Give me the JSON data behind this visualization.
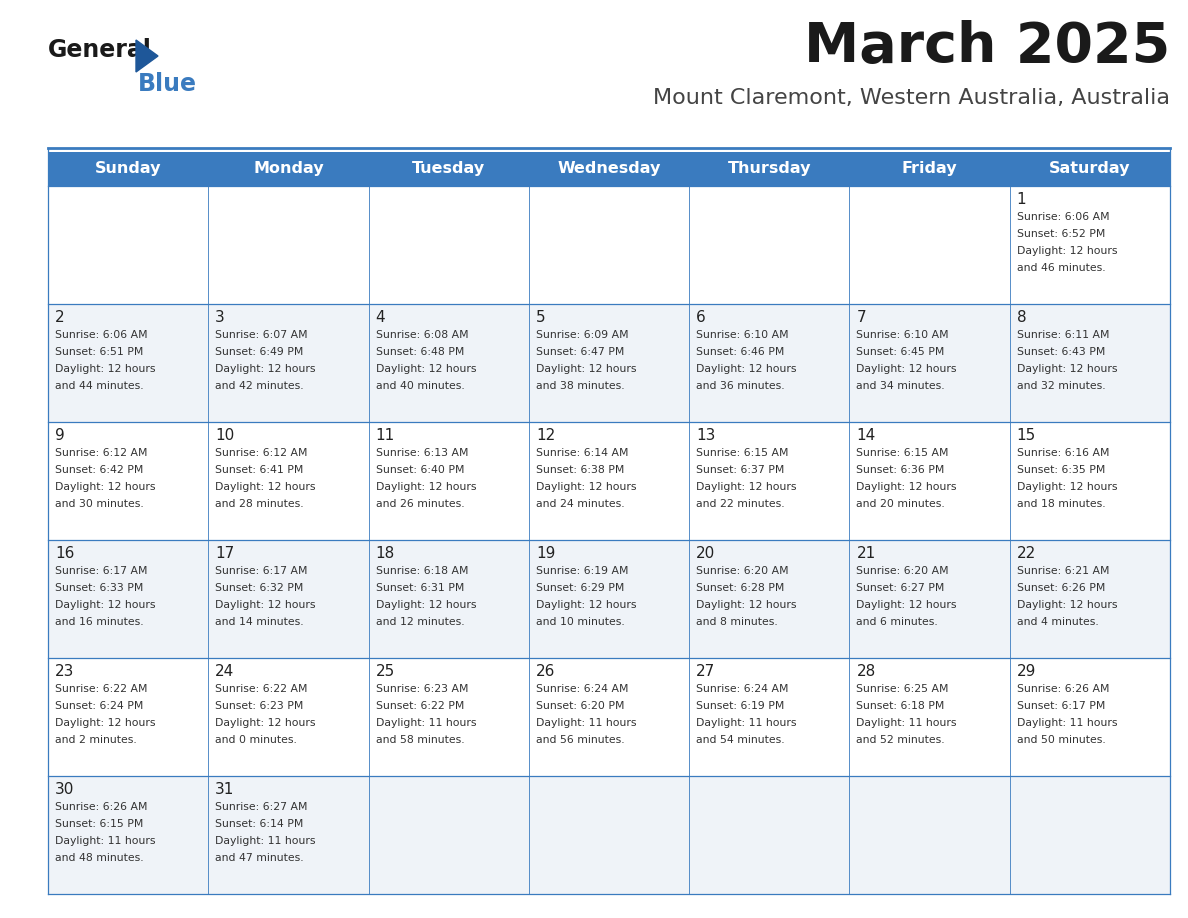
{
  "title": "March 2025",
  "subtitle": "Mount Claremont, Western Australia, Australia",
  "header_bg": "#3a7bbf",
  "header_text": "#ffffff",
  "weekdays": [
    "Sunday",
    "Monday",
    "Tuesday",
    "Wednesday",
    "Thursday",
    "Friday",
    "Saturday"
  ],
  "row_colors": [
    "#ffffff",
    "#eff3f8"
  ],
  "border_color": "#3a7bbf",
  "text_color": "#333333",
  "day_number_color": "#222222",
  "calendar_data": [
    [
      null,
      null,
      null,
      null,
      null,
      null,
      {
        "day": 1,
        "sunrise": "6:06 AM",
        "sunset": "6:52 PM",
        "daylight": "12 hours",
        "daylight2": "and 46 minutes."
      }
    ],
    [
      {
        "day": 2,
        "sunrise": "6:06 AM",
        "sunset": "6:51 PM",
        "daylight": "12 hours",
        "daylight2": "and 44 minutes."
      },
      {
        "day": 3,
        "sunrise": "6:07 AM",
        "sunset": "6:49 PM",
        "daylight": "12 hours",
        "daylight2": "and 42 minutes."
      },
      {
        "day": 4,
        "sunrise": "6:08 AM",
        "sunset": "6:48 PM",
        "daylight": "12 hours",
        "daylight2": "and 40 minutes."
      },
      {
        "day": 5,
        "sunrise": "6:09 AM",
        "sunset": "6:47 PM",
        "daylight": "12 hours",
        "daylight2": "and 38 minutes."
      },
      {
        "day": 6,
        "sunrise": "6:10 AM",
        "sunset": "6:46 PM",
        "daylight": "12 hours",
        "daylight2": "and 36 minutes."
      },
      {
        "day": 7,
        "sunrise": "6:10 AM",
        "sunset": "6:45 PM",
        "daylight": "12 hours",
        "daylight2": "and 34 minutes."
      },
      {
        "day": 8,
        "sunrise": "6:11 AM",
        "sunset": "6:43 PM",
        "daylight": "12 hours",
        "daylight2": "and 32 minutes."
      }
    ],
    [
      {
        "day": 9,
        "sunrise": "6:12 AM",
        "sunset": "6:42 PM",
        "daylight": "12 hours",
        "daylight2": "and 30 minutes."
      },
      {
        "day": 10,
        "sunrise": "6:12 AM",
        "sunset": "6:41 PM",
        "daylight": "12 hours",
        "daylight2": "and 28 minutes."
      },
      {
        "day": 11,
        "sunrise": "6:13 AM",
        "sunset": "6:40 PM",
        "daylight": "12 hours",
        "daylight2": "and 26 minutes."
      },
      {
        "day": 12,
        "sunrise": "6:14 AM",
        "sunset": "6:38 PM",
        "daylight": "12 hours",
        "daylight2": "and 24 minutes."
      },
      {
        "day": 13,
        "sunrise": "6:15 AM",
        "sunset": "6:37 PM",
        "daylight": "12 hours",
        "daylight2": "and 22 minutes."
      },
      {
        "day": 14,
        "sunrise": "6:15 AM",
        "sunset": "6:36 PM",
        "daylight": "12 hours",
        "daylight2": "and 20 minutes."
      },
      {
        "day": 15,
        "sunrise": "6:16 AM",
        "sunset": "6:35 PM",
        "daylight": "12 hours",
        "daylight2": "and 18 minutes."
      }
    ],
    [
      {
        "day": 16,
        "sunrise": "6:17 AM",
        "sunset": "6:33 PM",
        "daylight": "12 hours",
        "daylight2": "and 16 minutes."
      },
      {
        "day": 17,
        "sunrise": "6:17 AM",
        "sunset": "6:32 PM",
        "daylight": "12 hours",
        "daylight2": "and 14 minutes."
      },
      {
        "day": 18,
        "sunrise": "6:18 AM",
        "sunset": "6:31 PM",
        "daylight": "12 hours",
        "daylight2": "and 12 minutes."
      },
      {
        "day": 19,
        "sunrise": "6:19 AM",
        "sunset": "6:29 PM",
        "daylight": "12 hours",
        "daylight2": "and 10 minutes."
      },
      {
        "day": 20,
        "sunrise": "6:20 AM",
        "sunset": "6:28 PM",
        "daylight": "12 hours",
        "daylight2": "and 8 minutes."
      },
      {
        "day": 21,
        "sunrise": "6:20 AM",
        "sunset": "6:27 PM",
        "daylight": "12 hours",
        "daylight2": "and 6 minutes."
      },
      {
        "day": 22,
        "sunrise": "6:21 AM",
        "sunset": "6:26 PM",
        "daylight": "12 hours",
        "daylight2": "and 4 minutes."
      }
    ],
    [
      {
        "day": 23,
        "sunrise": "6:22 AM",
        "sunset": "6:24 PM",
        "daylight": "12 hours",
        "daylight2": "and 2 minutes."
      },
      {
        "day": 24,
        "sunrise": "6:22 AM",
        "sunset": "6:23 PM",
        "daylight": "12 hours",
        "daylight2": "and 0 minutes."
      },
      {
        "day": 25,
        "sunrise": "6:23 AM",
        "sunset": "6:22 PM",
        "daylight": "11 hours",
        "daylight2": "and 58 minutes."
      },
      {
        "day": 26,
        "sunrise": "6:24 AM",
        "sunset": "6:20 PM",
        "daylight": "11 hours",
        "daylight2": "and 56 minutes."
      },
      {
        "day": 27,
        "sunrise": "6:24 AM",
        "sunset": "6:19 PM",
        "daylight": "11 hours",
        "daylight2": "and 54 minutes."
      },
      {
        "day": 28,
        "sunrise": "6:25 AM",
        "sunset": "6:18 PM",
        "daylight": "11 hours",
        "daylight2": "and 52 minutes."
      },
      {
        "day": 29,
        "sunrise": "6:26 AM",
        "sunset": "6:17 PM",
        "daylight": "11 hours",
        "daylight2": "and 50 minutes."
      }
    ],
    [
      {
        "day": 30,
        "sunrise": "6:26 AM",
        "sunset": "6:15 PM",
        "daylight": "11 hours",
        "daylight2": "and 48 minutes."
      },
      {
        "day": 31,
        "sunrise": "6:27 AM",
        "sunset": "6:14 PM",
        "daylight": "11 hours",
        "daylight2": "and 47 minutes."
      },
      null,
      null,
      null,
      null,
      null
    ]
  ]
}
